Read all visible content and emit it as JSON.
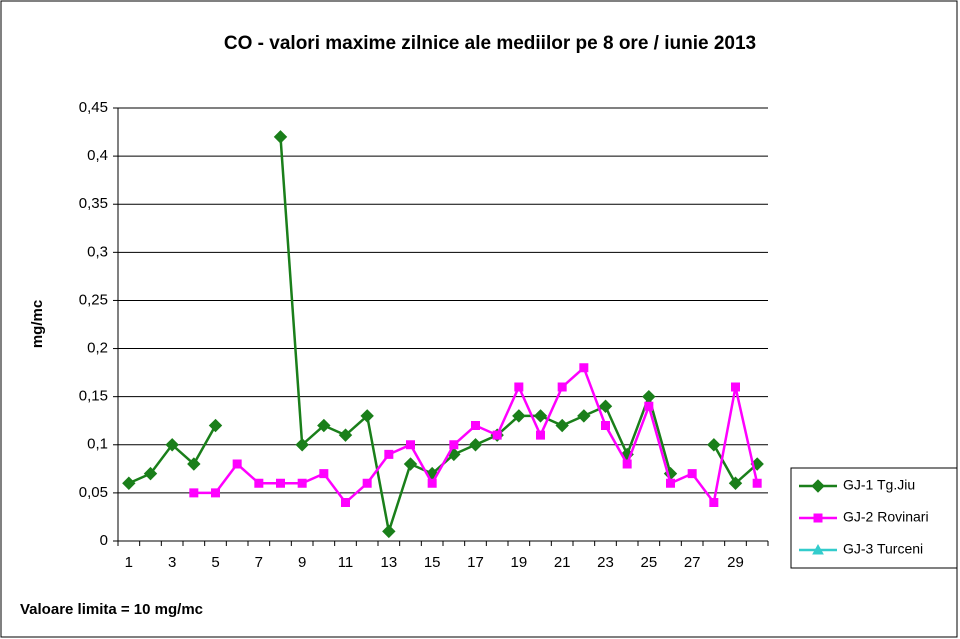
{
  "chart_data": {
    "type": "line",
    "title": "CO - valori maxime zilnice ale mediilor pe 8 ore / iunie 2013",
    "y_label": "mg/mc",
    "footnote": "Valoare limita = 10 mg/mc",
    "categories": [
      1,
      null,
      3,
      null,
      5,
      null,
      7,
      null,
      9,
      null,
      11,
      null,
      13,
      null,
      15,
      null,
      17,
      null,
      19,
      null,
      21,
      null,
      23,
      null,
      25,
      null,
      27,
      null,
      29,
      null
    ],
    "series": [
      {
        "name": "GJ-1 Tg.Jiu",
        "color": "#1a7f1a",
        "marker": "diamond",
        "values": [
          0.06,
          0.07,
          0.1,
          0.08,
          0.12,
          null,
          null,
          0.42,
          0.1,
          0.12,
          0.11,
          0.13,
          0.01,
          0.08,
          0.07,
          0.09,
          0.1,
          0.11,
          0.13,
          0.13,
          0.12,
          0.13,
          0.14,
          0.09,
          0.15,
          0.07,
          null,
          0.1,
          0.06,
          0.08
        ]
      },
      {
        "name": "GJ-2 Rovinari",
        "color": "#ff00ff",
        "marker": "square",
        "values": [
          null,
          null,
          null,
          0.05,
          0.05,
          0.08,
          0.06,
          0.06,
          0.06,
          0.07,
          0.04,
          0.06,
          0.09,
          0.1,
          0.06,
          0.1,
          0.12,
          0.11,
          0.16,
          0.11,
          0.16,
          0.18,
          0.12,
          0.08,
          0.14,
          0.06,
          0.07,
          0.04,
          0.16,
          0.06
        ]
      },
      {
        "name": "GJ-3 Turceni",
        "color": "#33cccc",
        "marker": "triangle",
        "values": [
          null,
          null,
          null,
          null,
          null,
          null,
          null,
          null,
          null,
          null,
          null,
          null,
          null,
          null,
          null,
          null,
          null,
          null,
          null,
          null,
          null,
          null,
          null,
          null,
          null,
          null,
          null,
          null,
          null,
          null
        ]
      }
    ],
    "ylim": [
      0,
      0.45
    ],
    "yticks": [
      0,
      {
        "value": 0.05,
        "label": "0,05"
      },
      {
        "value": 0.1,
        "label": "0,1"
      },
      {
        "value": 0.15,
        "label": "0,15"
      },
      {
        "value": 0.2,
        "label": "0,2"
      },
      {
        "value": 0.25,
        "label": "0,25"
      },
      {
        "value": 0.3,
        "label": "0,3"
      },
      {
        "value": 0.35,
        "label": "0,35"
      },
      {
        "value": 0.4,
        "label": "0,4"
      },
      {
        "value": 0.45,
        "label": "0,45"
      }
    ],
    "grid": true,
    "legend": "right"
  }
}
